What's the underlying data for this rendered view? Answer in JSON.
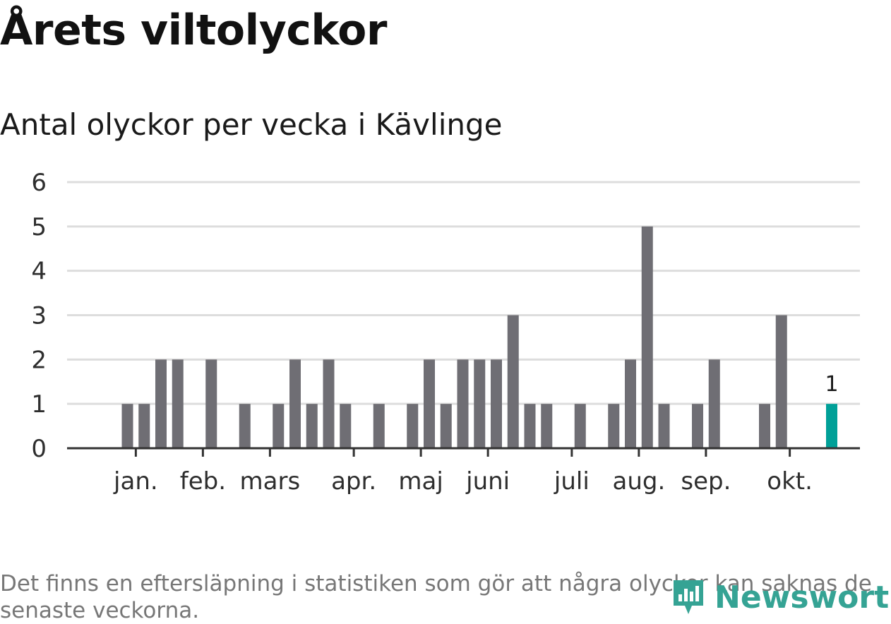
{
  "title": "Årets viltolyckor",
  "subtitle": "Antal olyckor per vecka i Kävlinge",
  "note": "Det finns en eftersläpning i statistiken som gör att några olyckor kan saknas de senaste veckorna.",
  "brand": {
    "name": "Newsworthy",
    "color": "#35a394",
    "icon": "bar-chart-badge-icon"
  },
  "colors": {
    "bar": "#6f6e74",
    "highlight": "#00a098",
    "grid": "#dddddd",
    "axis": "#333333"
  },
  "chart_data": {
    "type": "bar",
    "title": "Årets viltolyckor",
    "subtitle": "Antal olyckor per vecka i Kävlinge",
    "xlabel": "",
    "ylabel": "",
    "ylim": [
      0,
      6
    ],
    "yticks": [
      0,
      1,
      2,
      3,
      4,
      5,
      6
    ],
    "grid": true,
    "weeks": [
      1,
      2,
      3,
      4,
      5,
      6,
      7,
      8,
      9,
      10,
      11,
      12,
      13,
      14,
      15,
      16,
      17,
      18,
      19,
      20,
      21,
      22,
      23,
      24,
      25,
      26,
      27,
      28,
      29,
      30,
      31,
      32,
      33,
      34,
      35,
      36,
      37,
      38,
      39,
      40,
      41,
      42,
      43,
      44,
      45,
      46
    ],
    "values": [
      0,
      0,
      1,
      1,
      2,
      2,
      0,
      2,
      0,
      1,
      0,
      1,
      2,
      1,
      2,
      1,
      0,
      1,
      0,
      1,
      2,
      1,
      2,
      2,
      2,
      3,
      1,
      1,
      0,
      1,
      0,
      1,
      2,
      5,
      1,
      0,
      1,
      2,
      0,
      0,
      1,
      3,
      0,
      0,
      1,
      null
    ],
    "highlight_week": 45,
    "highlight_label": "1",
    "month_labels": [
      {
        "label": "jan.",
        "week": 3.5
      },
      {
        "label": "feb.",
        "week": 7.5
      },
      {
        "label": "mars",
        "week": 11.5
      },
      {
        "label": "apr.",
        "week": 16.5
      },
      {
        "label": "maj",
        "week": 20.5
      },
      {
        "label": "juni",
        "week": 24.5
      },
      {
        "label": "juli",
        "week": 29.5
      },
      {
        "label": "aug.",
        "week": 33.5
      },
      {
        "label": "sep.",
        "week": 37.5
      },
      {
        "label": "okt.",
        "week": 42.5
      }
    ]
  }
}
